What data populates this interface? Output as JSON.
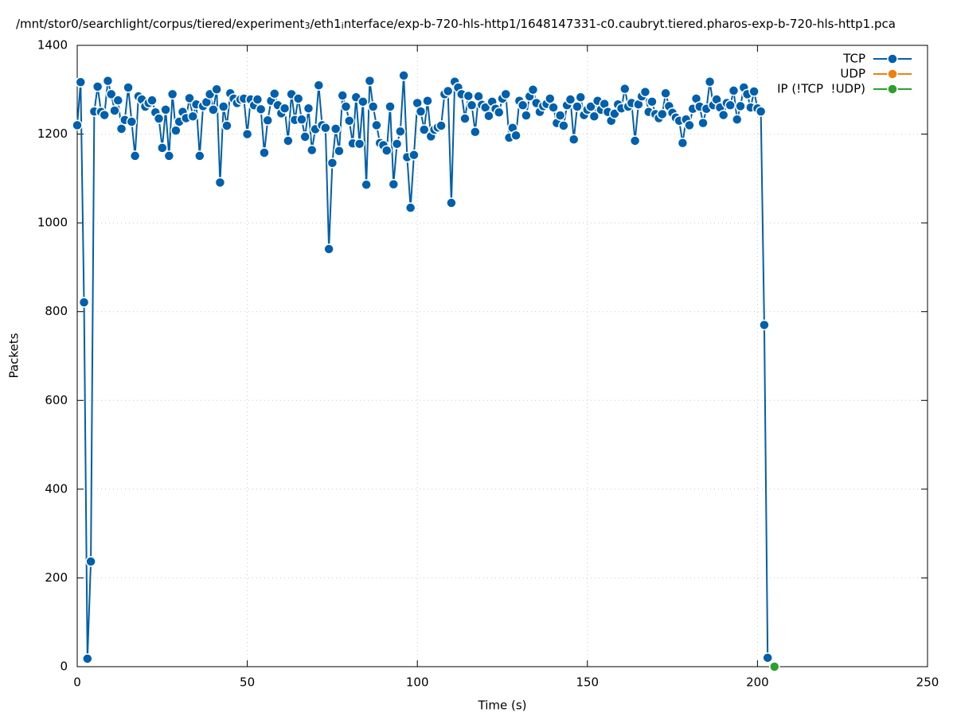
{
  "chart_data": {
    "type": "line",
    "title": [
      "/mnt/stor0/searchlight/corpus/tiered/experiment",
      "3",
      "/eth1",
      "i",
      "nterface/exp-b-720-hls-http1/1648147331-c0.caubryt.tiered.pharos-exp-b-720-hls-http1.pca"
    ],
    "xlabel": "Time (s)",
    "ylabel": "Packets",
    "xlim": [
      0,
      250
    ],
    "xticks": [
      0,
      50,
      100,
      150,
      200,
      250
    ],
    "ylim": [
      0,
      1400
    ],
    "yticks": [
      0,
      200,
      400,
      600,
      800,
      1000,
      1200,
      1400
    ],
    "grid": true,
    "legend": "top-right",
    "series": [
      {
        "name": "TCP",
        "color": "#0060ad",
        "x": [
          0,
          1,
          2,
          3,
          4,
          5,
          6,
          7,
          8,
          9,
          10,
          11,
          12,
          13,
          14,
          15,
          16,
          17,
          18,
          19,
          20,
          21,
          22,
          23,
          24,
          25,
          26,
          27,
          28,
          29,
          30,
          31,
          32,
          33,
          34,
          35,
          36,
          37,
          38,
          39,
          40,
          41,
          42,
          43,
          44,
          45,
          46,
          47,
          48,
          49,
          50,
          51,
          52,
          53,
          54,
          55,
          56,
          57,
          58,
          59,
          60,
          61,
          62,
          63,
          64,
          65,
          66,
          67,
          68,
          69,
          70,
          71,
          72,
          73,
          74,
          75,
          76,
          77,
          78,
          79,
          80,
          81,
          82,
          83,
          84,
          85,
          86,
          87,
          88,
          89,
          90,
          91,
          92,
          93,
          94,
          95,
          96,
          97,
          98,
          99,
          100,
          101,
          102,
          103,
          104,
          105,
          106,
          107,
          108,
          109,
          110,
          111,
          112,
          113,
          114,
          115,
          116,
          117,
          118,
          119,
          120,
          121,
          122,
          123,
          124,
          125,
          126,
          127,
          128,
          129,
          130,
          131,
          132,
          133,
          134,
          135,
          136,
          137,
          138,
          139,
          140,
          141,
          142,
          143,
          144,
          145,
          146,
          147,
          148,
          149,
          150,
          151,
          152,
          153,
          154,
          155,
          156,
          157,
          158,
          159,
          160,
          161,
          162,
          163,
          164,
          165,
          166,
          167,
          168,
          169,
          170,
          171,
          172,
          173,
          174,
          175,
          176,
          177,
          178,
          179,
          180,
          181,
          182,
          183,
          184,
          185,
          186,
          187,
          188,
          189,
          190,
          191,
          192,
          193,
          194,
          195,
          196,
          197,
          198,
          199,
          200,
          201,
          202,
          203
        ],
        "values": [
          1220,
          1317,
          821,
          18,
          237,
          1251,
          1307,
          1250,
          1243,
          1320,
          1290,
          1253,
          1276,
          1212,
          1232,
          1305,
          1228,
          1151,
          1285,
          1278,
          1262,
          1270,
          1276,
          1249,
          1235,
          1169,
          1255,
          1151,
          1290,
          1208,
          1228,
          1250,
          1236,
          1281,
          1240,
          1267,
          1151,
          1263,
          1272,
          1290,
          1255,
          1301,
          1091,
          1262,
          1219,
          1292,
          1280,
          1270,
          1278,
          1280,
          1200,
          1278,
          1265,
          1278,
          1256,
          1158,
          1231,
          1275,
          1291,
          1265,
          1247,
          1258,
          1185,
          1290,
          1232,
          1280,
          1233,
          1194,
          1258,
          1164,
          1211,
          1310,
          1220,
          1214,
          941,
          1135,
          1212,
          1162,
          1287,
          1262,
          1230,
          1179,
          1283,
          1178,
          1273,
          1086,
          1320,
          1262,
          1220,
          1180,
          1175,
          1163,
          1262,
          1087,
          1178,
          1206,
          1332,
          1148,
          1034,
          1153,
          1270,
          1251,
          1210,
          1275,
          1195,
          1210,
          1215,
          1219,
          1290,
          1297,
          1045,
          1318,
          1305,
          1290,
          1235,
          1286,
          1265,
          1205,
          1285,
          1266,
          1260,
          1241,
          1273,
          1257,
          1249,
          1280,
          1290,
          1192,
          1214,
          1197,
          1275,
          1265,
          1242,
          1285,
          1300,
          1270,
          1250,
          1263,
          1268,
          1280,
          1260,
          1225,
          1242,
          1219,
          1265,
          1278,
          1188,
          1262,
          1283,
          1243,
          1255,
          1262,
          1240,
          1275,
          1255,
          1268,
          1250,
          1230,
          1246,
          1267,
          1258,
          1302,
          1262,
          1270,
          1185,
          1267,
          1285,
          1295,
          1250,
          1273,
          1245,
          1236,
          1245,
          1292,
          1263,
          1248,
          1237,
          1230,
          1180,
          1233,
          1220,
          1257,
          1280,
          1262,
          1225,
          1257,
          1318,
          1265,
          1278,
          1260,
          1243,
          1270,
          1265,
          1298,
          1233,
          1263,
          1305,
          1290,
          1260,
          1296,
          1258,
          1251,
          770,
          20
        ]
      },
      {
        "name": "UDP",
        "color": "#f07f10",
        "x": [],
        "values": []
      },
      {
        "name": "IP (!TCP  !UDP)",
        "color": "#2ca02c",
        "x": [
          205
        ],
        "values": [
          0
        ]
      }
    ]
  }
}
